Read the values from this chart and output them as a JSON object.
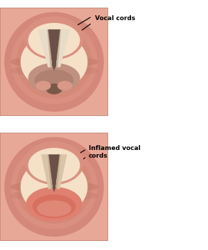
{
  "background_color": "#ffffff",
  "normal_label": "Vocal cords",
  "inflamed_label": "Inflamed vocal\ncords",
  "skin_base": "#e8a898",
  "skin_medium": "#d4887a",
  "skin_light": "#f2c8b0",
  "skin_fold_dark": "#c07868",
  "skin_fold_light": "#e8b0a0",
  "inner_cream": "#f5e0c8",
  "inner_light": "#f8e8d8",
  "cord_white": "#e8dcc8",
  "cord_shadow": "#c8a888",
  "cord_mid": "#d8c4a8",
  "dark_opening": "#6a5048",
  "dark_shadow": "#8a6858",
  "bottom_shadow": "#b08878",
  "inflamed_red": "#e08070",
  "inflamed_bright": "#d87060",
  "inflamed_pink": "#e89888",
  "line_color": "#000000",
  "text_color": "#000000"
}
